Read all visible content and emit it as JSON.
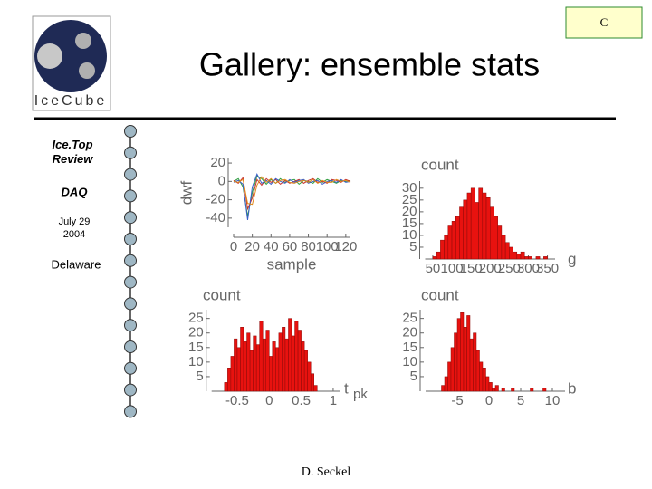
{
  "slide": {
    "corner": "C",
    "title": "Gallery: ensemble stats",
    "logo": "IceCube",
    "sidebar": {
      "review": "Ice.Top Review",
      "daq": "DAQ",
      "date": "July 29 2004",
      "place": "Delaware"
    },
    "footer": "D. Seckel"
  },
  "chart_data": [
    {
      "type": "line",
      "x_label": "sample",
      "y_label": "dwf",
      "x": [
        0,
        5,
        10,
        15,
        20,
        25,
        30,
        35,
        40,
        45,
        50,
        55,
        60,
        65,
        70,
        75,
        80,
        85,
        90,
        95,
        100,
        105,
        110,
        115,
        120,
        125
      ],
      "series": [
        {
          "color": "#2e9e3e",
          "values": [
            0,
            3,
            -6,
            -38,
            -12,
            6,
            3,
            -3,
            2,
            -2,
            3,
            -1,
            1,
            2,
            -3,
            1,
            0,
            -2,
            3,
            -1,
            2,
            0,
            -2,
            1,
            0,
            1
          ]
        },
        {
          "color": "#c8332b",
          "values": [
            1,
            -2,
            4,
            -30,
            -18,
            2,
            -4,
            3,
            -1,
            2,
            -3,
            1,
            -2,
            0,
            2,
            -2,
            1,
            3,
            -1,
            0,
            -2,
            2,
            1,
            -1,
            2,
            0
          ]
        },
        {
          "color": "#3a5fc8",
          "values": [
            -1,
            1,
            -3,
            -42,
            -6,
            8,
            -2,
            1,
            -3,
            3,
            0,
            -2,
            2,
            -1,
            1,
            2,
            -2,
            0,
            1,
            -3,
            0,
            1,
            -1,
            2,
            -1,
            0
          ]
        },
        {
          "color": "#e08a1e",
          "values": [
            0,
            -1,
            2,
            -24,
            -25,
            -4,
            5,
            -1,
            3,
            -2,
            1,
            2,
            -1,
            -2,
            0,
            1,
            -1,
            2,
            -2,
            1,
            -1,
            -1,
            2,
            0,
            1,
            -1
          ]
        }
      ],
      "xlim": [
        0,
        125
      ],
      "ylim": [
        -50,
        25
      ],
      "xticks": [
        0,
        20,
        40,
        60,
        80,
        100,
        120
      ],
      "yticks": [
        20,
        0,
        -20,
        -40
      ]
    },
    {
      "type": "histogram",
      "x_label": "g",
      "y_label": "count",
      "color": "#e8120f",
      "bins": [
        40,
        50,
        60,
        70,
        80,
        90,
        100,
        110,
        120,
        130,
        140,
        150,
        160,
        170,
        180,
        190,
        200,
        210,
        220,
        230,
        240,
        250,
        260,
        270,
        280,
        290,
        300,
        310,
        320,
        330,
        340,
        350,
        360
      ],
      "counts": [
        0,
        1,
        3,
        8,
        10,
        14,
        16,
        18,
        22,
        25,
        28,
        30,
        24,
        30,
        28,
        26,
        22,
        18,
        14,
        10,
        7,
        5,
        3,
        2,
        3,
        1,
        1,
        0,
        1,
        0,
        1,
        0
      ],
      "xlim": [
        30,
        370
      ],
      "ylim": [
        0,
        33
      ],
      "xticks": [
        50,
        100,
        150,
        200,
        250,
        300,
        350
      ],
      "yticks": [
        30,
        25,
        20,
        15,
        10,
        5
      ]
    },
    {
      "type": "histogram",
      "x_label": "t",
      "x_label_subscript": "pk",
      "y_label": "count",
      "color": "#e8120f",
      "bins": [
        -0.7,
        -0.65,
        -0.6,
        -0.55,
        -0.5,
        -0.45,
        -0.4,
        -0.35,
        -0.3,
        -0.25,
        -0.2,
        -0.15,
        -0.1,
        -0.05,
        0,
        0.05,
        0.1,
        0.15,
        0.2,
        0.25,
        0.3,
        0.35,
        0.4,
        0.45,
        0.5,
        0.55,
        0.6,
        0.65,
        0.7,
        0.75,
        0.8
      ],
      "counts": [
        3,
        8,
        12,
        18,
        15,
        22,
        17,
        20,
        14,
        19,
        16,
        24,
        18,
        21,
        12,
        17,
        15,
        20,
        22,
        18,
        25,
        19,
        24,
        21,
        17,
        14,
        10,
        6,
        2,
        0
      ],
      "xlim": [
        -0.9,
        1.1
      ],
      "ylim": [
        0,
        28
      ],
      "xticks": [
        -0.5,
        0,
        0.5,
        1
      ],
      "yticks": [
        25,
        20,
        15,
        10,
        5
      ]
    },
    {
      "type": "histogram",
      "x_label": "b",
      "y_label": "count",
      "color": "#e8120f",
      "bins": [
        -8,
        -7.5,
        -7,
        -6.5,
        -6,
        -5.5,
        -5,
        -4.5,
        -4,
        -3.5,
        -3,
        -2.5,
        -2,
        -1.5,
        -1,
        -0.5,
        0,
        0.5,
        1,
        1.5,
        2,
        2.5,
        3,
        3.5,
        4,
        4.5,
        5,
        5.5,
        6,
        6.5,
        7,
        7.5,
        8,
        8.5,
        9
      ],
      "counts": [
        0,
        2,
        5,
        10,
        15,
        20,
        25,
        27,
        22,
        26,
        18,
        20,
        14,
        10,
        8,
        5,
        3,
        1,
        2,
        0,
        1,
        0,
        0,
        1,
        0,
        0,
        0,
        0,
        0,
        1,
        0,
        0,
        0,
        1
      ],
      "xlim": [
        -10,
        12
      ],
      "ylim": [
        0,
        28
      ],
      "xticks": [
        -5,
        0,
        5,
        10
      ],
      "yticks": [
        25,
        20,
        15,
        10,
        5
      ]
    }
  ]
}
